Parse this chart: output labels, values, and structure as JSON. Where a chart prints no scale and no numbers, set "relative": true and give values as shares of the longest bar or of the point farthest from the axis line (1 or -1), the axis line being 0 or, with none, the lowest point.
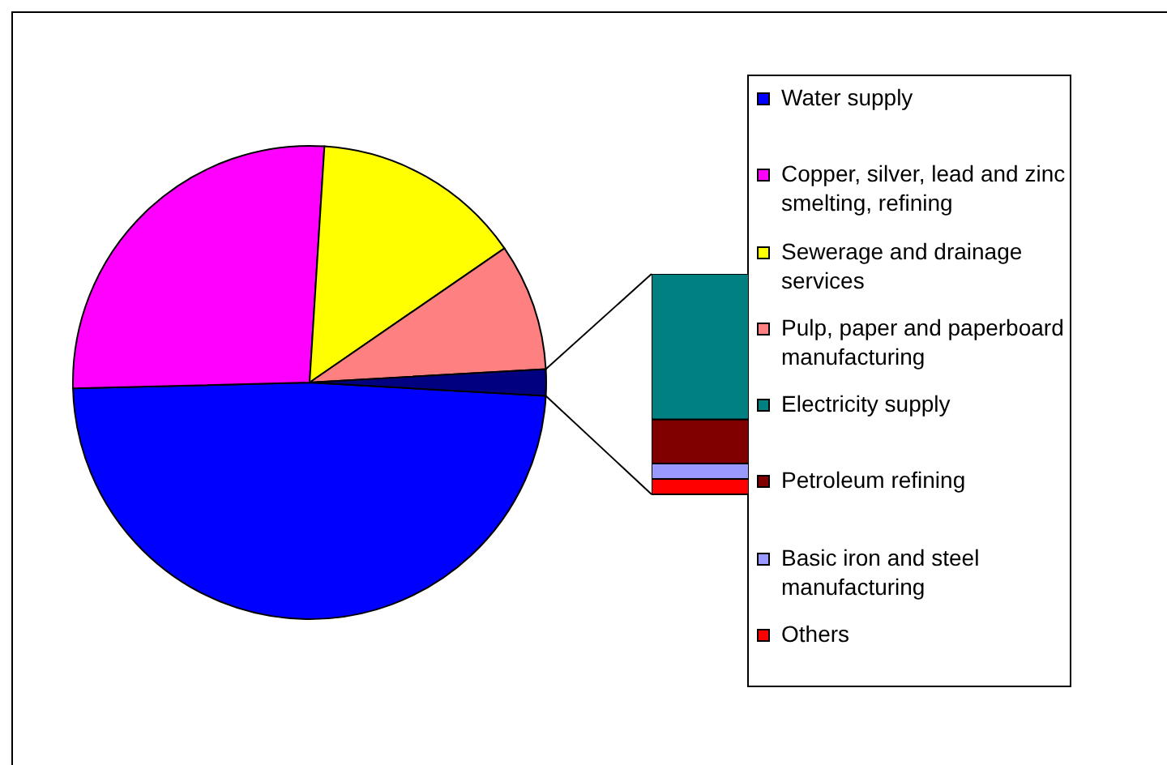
{
  "chart_data": [
    {
      "type": "pie",
      "categories": [
        "Water supply",
        "Copper, silver, lead and zinc smelting, refining",
        "Sewerage and drainage services",
        "Pulp, paper and paperboard manufacturing",
        null
      ],
      "values": [
        48.7,
        26.4,
        14.4,
        8.7,
        1.8
      ],
      "colors": [
        "#0000ff",
        "#ff00ff",
        "#ffff00",
        "#ff8080",
        "#000080"
      ],
      "legend": "right"
    },
    {
      "type": "bar",
      "stacked": true,
      "relative": true,
      "categories": [
        null
      ],
      "series": [
        {
          "name": "Others",
          "color": "#ff0000",
          "values": [
            0.07
          ]
        },
        {
          "name": "Basic iron and steel manufacturing",
          "color": "#9999ff",
          "values": [
            0.07
          ]
        },
        {
          "name": "Petroleum refining",
          "color": "#800000",
          "values": [
            0.2
          ]
        },
        {
          "name": "Electricity supply",
          "color": "#008080",
          "values": [
            0.66
          ]
        }
      ],
      "legend": "right"
    }
  ]
}
